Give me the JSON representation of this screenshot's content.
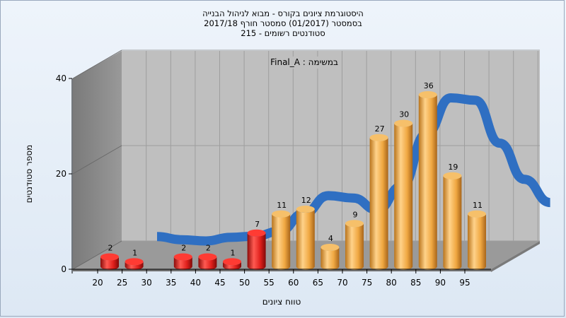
{
  "chart_data": {
    "type": "bar",
    "title_lines": [
      "היסטוגרמת ציונים בקורס - מבוא לניהול הבנייה",
      "בסמסטר  (01/2017)  סמסטר חורף 2017/18",
      "סטודנטים רשומים - 215"
    ],
    "annotation": "במשימה : Final_A",
    "xlabel": "טווח ציונים",
    "ylabel": "מספר סטודנטים",
    "categories": [
      "20",
      "25",
      "30",
      "35",
      "40",
      "45",
      "50",
      "55",
      "60",
      "65",
      "70",
      "75",
      "80",
      "85",
      "90",
      "95"
    ],
    "values": [
      2,
      1,
      null,
      2,
      2,
      1,
      7,
      11,
      12,
      4,
      9,
      27,
      30,
      36,
      19,
      11
    ],
    "y_ticks": [
      0,
      20,
      40
    ],
    "ylim": [
      0,
      40
    ],
    "colors": {
      "fail": "#e0201c",
      "pass": "#f0ad4e",
      "curve": "#2f6fc2"
    },
    "fail_threshold": 55,
    "grid": true
  }
}
